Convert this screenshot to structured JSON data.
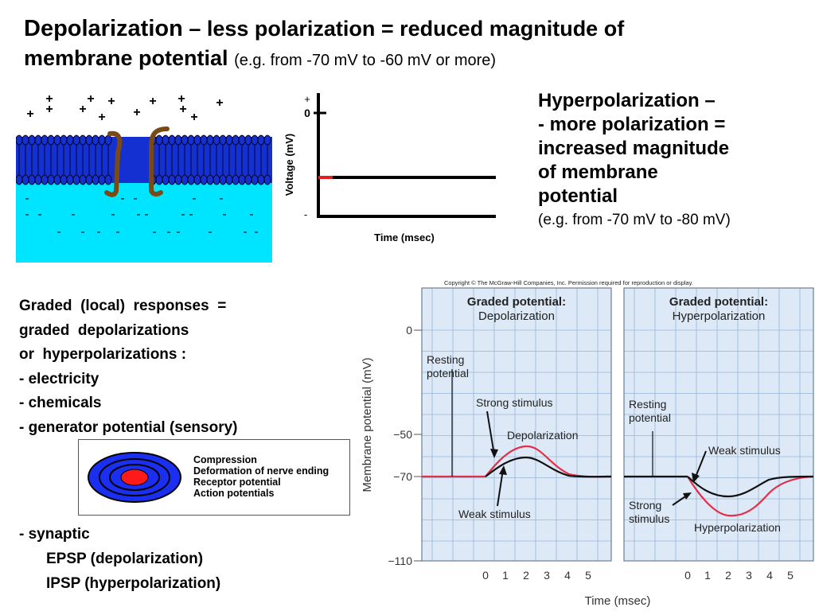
{
  "title": {
    "part1": "Depolarization",
    "part2": " – less polarization = reduced magnitude of",
    "part3": "membrane potential",
    "part4": "(e.g. from -70 mV to -60 mV or more)"
  },
  "hyperpolarization": {
    "line1": "Hyperpolarization",
    "dash": " –",
    "line2": "- more polarization =",
    "line3": "increased magnitude",
    "line4": "of membrane",
    "line5": "potential",
    "note": "(e.g. from -70 mV to -80 mV)"
  },
  "membrane_figure": {
    "plus": "+",
    "minus": "-",
    "colors": {
      "extracellular": "#ffffff",
      "intracellular": "#00e5ff",
      "bilayer": "#1530d0",
      "channel": "#7a4a14"
    }
  },
  "voltage_graph": {
    "ylabel": "Voltage (mV)",
    "xlabel": "Time (msec)",
    "tick_plus": "+",
    "tick_zero": "0",
    "tick_minus": "-"
  },
  "graded_list": {
    "line1": "Graded  (local)  responses  =",
    "line2": "graded  depolarizations",
    "line3": "or  hyperpolarizations :",
    "item1": "- electricity",
    "item2": "- chemicals",
    "item3": "- generator potential (sensory)"
  },
  "receptor_box": {
    "labels": [
      "Compression",
      "Deformation of nerve ending",
      "Receptor potential",
      "Action potentials"
    ]
  },
  "synaptic": {
    "line1": "- synaptic",
    "line2": "EPSP (depolarization)",
    "line3": "IPSP (hyperpolarization)"
  },
  "graded_potential_figure": {
    "copyright": "Copyright © The McGraw-Hill Companies, Inc. Permission required for reproduction or display.",
    "ylabel": "Membrane potential (mV)",
    "xlabel": "Time (msec)",
    "yticks": [
      "0",
      "−50",
      "−70",
      "−110"
    ],
    "xticks": [
      "0",
      "1",
      "2",
      "3",
      "4",
      "5"
    ],
    "left_panel": {
      "title": "Graded potential:",
      "subtitle": "Depolarization",
      "resting": [
        "Resting",
        "potential"
      ],
      "strong": "Strong stimulus",
      "curve_label": "Depolarization",
      "weak": "Weak stimulus"
    },
    "right_panel": {
      "title": "Graded potential:",
      "subtitle": "Hyperpolarization",
      "resting": [
        "Resting",
        "potential"
      ],
      "weak": "Weak stimulus",
      "strong": [
        "Strong",
        "stimulus"
      ],
      "curve_label": "Hyperpolarization"
    },
    "colors": {
      "panel_bg": "#dde9f6",
      "grid": "#9ab5d6",
      "strong_curve": "#e0304a",
      "weak_curve": "#111111"
    }
  }
}
